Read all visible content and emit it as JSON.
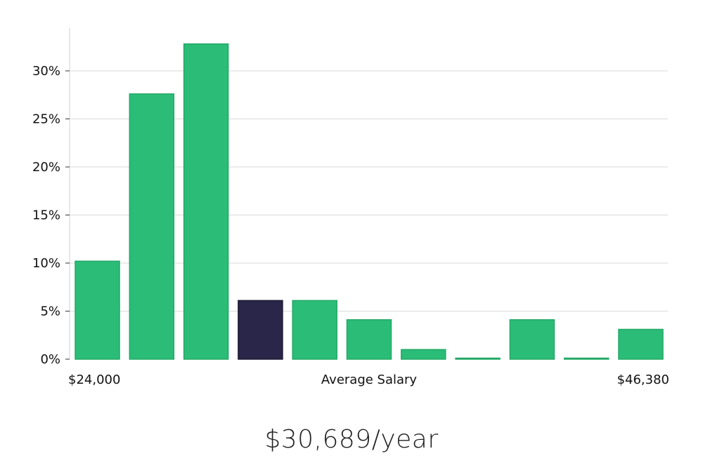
{
  "chart_data": {
    "type": "bar",
    "title": "",
    "xlabel": "Average Salary",
    "ylabel": "",
    "x_range_labels": {
      "min": "$24,000",
      "max": "$46,380"
    },
    "ylim": [
      0,
      35
    ],
    "yticks": [
      "0%",
      "5%",
      "10%",
      "15%",
      "20%",
      "25%",
      "30%"
    ],
    "ytick_values": [
      0,
      5,
      10,
      15,
      20,
      25,
      30
    ],
    "values": [
      10.2,
      27.6,
      32.8,
      6.1,
      6.1,
      4.1,
      1.0,
      0.05,
      4.1,
      0.05,
      3.1
    ],
    "highlight_index": 3,
    "colors": {
      "bar": "#2bbd77",
      "highlight": "#2a2649",
      "grid": "#d9d9d9",
      "axis": "#d0d0d0"
    },
    "grid": true
  },
  "summary": {
    "salary_text": "$30,689/year"
  }
}
